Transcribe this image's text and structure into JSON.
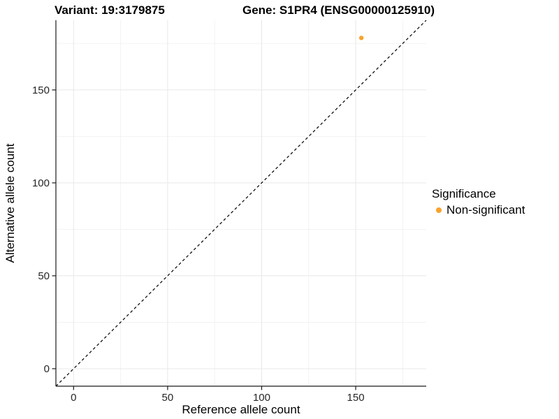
{
  "chart_data": {
    "type": "scatter",
    "titles": {
      "variant": "Variant: 19:3179875",
      "gene": "Gene: S1PR4 (ENSG00000125910)"
    },
    "xlabel": "Reference allele count",
    "ylabel": "Alternative allele count",
    "x_ticks": [
      0,
      50,
      100,
      150
    ],
    "y_ticks": [
      0,
      50,
      100,
      150
    ],
    "x_minor_ticks": [
      25,
      75,
      125,
      175
    ],
    "y_minor_ticks": [
      25,
      75,
      125,
      175
    ],
    "xlim": [
      -9.4,
      187.5
    ],
    "ylim": [
      -9.4,
      187.5
    ],
    "grid": "major and minor, light gray, on white panel",
    "identity_line": {
      "type": "y=x",
      "style": "dashed",
      "color": "#000000",
      "from": -9.4,
      "to": 187.5
    },
    "series": [
      {
        "name": "Non-significant",
        "points": [
          {
            "x": 153,
            "y": 178
          }
        ],
        "color": "#F9A22B"
      }
    ],
    "legend": {
      "title": "Significance",
      "position": "right",
      "entries": [
        {
          "label": "Non-significant",
          "color": "#F9A22B"
        }
      ]
    },
    "colors": {
      "point": "#F9A22B",
      "grid_major": "#e8e8e8",
      "grid_minor": "#f3f3f3",
      "axis_line": "#1a1a1a",
      "tick_label": "#262626"
    }
  }
}
